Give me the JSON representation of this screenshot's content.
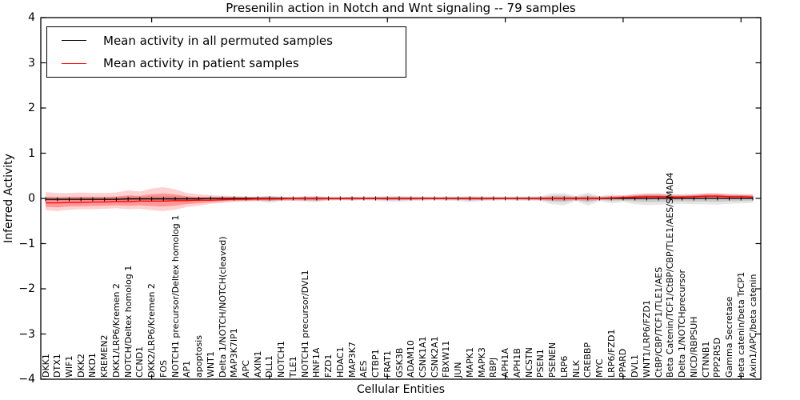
{
  "title": "Presenilin action in Notch and Wnt signaling -- 79 samples",
  "legend": {
    "items": [
      {
        "label": "Mean activity in all permuted samples",
        "color": "#000000"
      },
      {
        "label": "Mean activity in patient samples",
        "color": "#ff0000"
      }
    ]
  },
  "chart_data": {
    "type": "line",
    "title": "Presenilin action in Notch and Wnt signaling -- 79 samples",
    "xlabel": "Cellular Entities",
    "ylabel": "Inferred Activity",
    "ylim": [
      -4,
      4
    ],
    "yticks": [
      4,
      3,
      2,
      1,
      0,
      -1,
      -2,
      -3,
      -4
    ],
    "xticks_at": [
      9,
      19,
      29,
      39,
      49,
      59
    ],
    "grid": false,
    "legend_position": "upper left",
    "band_colors": {
      "permuted": "#808080",
      "patient": "#ff0000"
    },
    "categories": [
      "DKK1",
      "DTX1",
      "WIF1",
      "DKK2",
      "NKD1",
      "KREMEN2",
      "DKK1/LRP6/Kremen 2",
      "NOTCH/Deltex homolog 1",
      "CCND1",
      "DKK2/LRP6/Kremen 2",
      "FOS",
      "NOTCH1 precursor/Deltex homolog 1",
      "AP1",
      "apoptosis",
      "WNT1",
      "Delta 1/NOTCH/NOTCH(cleaved)",
      "MAP3K7IP1",
      "APC",
      "AXIN1",
      "DLL1",
      "NOTCH1",
      "TLE1",
      "NOTCH1 precursor/DVL1",
      "HNF1A",
      "FZD1",
      "HDAC1",
      "MAP3K7",
      "AES",
      "CTBP1",
      "FRAT1",
      "GSK3B",
      "ADAM10",
      "CSNK1A1",
      "CSNK2A1",
      "FBXW11",
      "JUN",
      "MAPK1",
      "MAPK3",
      "RBPJ",
      "APH1A",
      "APH1B",
      "NCSTN",
      "PSEN1",
      "PSENEN",
      "LRP6",
      "NLK",
      "CREBBP",
      "MYC",
      "LRP6/FZD1",
      "PPARD",
      "DVL1",
      "WNT1/LRP6/FZD1",
      "CtBP/CBP/TCF1/TLE1/AES",
      "Beta Catenin/TCF1/CtBP/CBP/TLE1/AES/SMAD4",
      "Delta 1/NOTCHprecursor",
      "NICD/RBPSUH",
      "CTNNB1",
      "PPP2R5D",
      "Gamma Secretase",
      "beta catenin/beta TrCP1",
      "Axin1/APC/beta catenin"
    ],
    "series": [
      {
        "name": "Mean activity in all permuted samples",
        "color": "#000000",
        "values": [
          -0.02,
          -0.02,
          -0.02,
          -0.02,
          -0.02,
          -0.02,
          -0.02,
          -0.01,
          -0.01,
          -0.01,
          -0.01,
          -0.01,
          -0.01,
          -0.01,
          0,
          0,
          0,
          0,
          0,
          0,
          0,
          0,
          0,
          0,
          0,
          0,
          0,
          0,
          0,
          0,
          0,
          0,
          0,
          0,
          0,
          0,
          0,
          0,
          0,
          0,
          0,
          0,
          0,
          0,
          0,
          0,
          0,
          0,
          0,
          0,
          0,
          0,
          0,
          0,
          0,
          0,
          0,
          0,
          0,
          0,
          0
        ],
        "band_lo": [
          -0.06,
          -0.06,
          -0.05,
          -0.05,
          -0.05,
          -0.05,
          -0.05,
          -0.06,
          -0.05,
          -0.06,
          -0.06,
          -0.06,
          -0.05,
          -0.05,
          -0.05,
          -0.05,
          -0.05,
          -0.05,
          -0.06,
          -0.1,
          -0.06,
          -0.05,
          -0.07,
          -0.08,
          -0.05,
          -0.04,
          -0.05,
          -0.04,
          -0.05,
          -0.07,
          -0.07,
          -0.06,
          -0.05,
          -0.04,
          -0.05,
          -0.06,
          -0.08,
          -0.06,
          -0.05,
          -0.04,
          -0.05,
          -0.06,
          -0.06,
          -0.13,
          -0.15,
          -0.06,
          -0.16,
          -0.06,
          -0.11,
          -0.08,
          -0.13,
          -0.15,
          -0.14,
          -0.13,
          -0.12,
          -0.13,
          -0.13,
          -0.14,
          -0.12,
          -0.11,
          -0.1
        ],
        "band_hi": [
          0.04,
          0.04,
          0.04,
          0.04,
          0.04,
          0.04,
          0.04,
          0.05,
          0.04,
          0.05,
          0.05,
          0.05,
          0.04,
          0.04,
          0.04,
          0.04,
          0.04,
          0.04,
          0.04,
          0.06,
          0.04,
          0.03,
          0.04,
          0.05,
          0.03,
          0.03,
          0.04,
          0.03,
          0.04,
          0.05,
          0.05,
          0.04,
          0.04,
          0.03,
          0.04,
          0.04,
          0.05,
          0.04,
          0.04,
          0.03,
          0.04,
          0.04,
          0.05,
          0.11,
          0.12,
          0.05,
          0.13,
          0.05,
          0.09,
          0.06,
          0.09,
          0.1,
          0.1,
          0.09,
          0.09,
          0.1,
          0.1,
          0.1,
          0.09,
          0.08,
          0.08
        ]
      },
      {
        "name": "Mean activity in patient samples",
        "color": "#ff0000",
        "values": [
          -0.1,
          -0.1,
          -0.09,
          -0.09,
          -0.08,
          -0.08,
          -0.07,
          -0.07,
          -0.06,
          -0.06,
          -0.06,
          -0.05,
          -0.05,
          -0.04,
          -0.04,
          -0.03,
          -0.02,
          -0.02,
          -0.01,
          -0.01,
          -0.01,
          0,
          0,
          0,
          0,
          0,
          0,
          0,
          0,
          0,
          0,
          0,
          0,
          0,
          0,
          0,
          0,
          0,
          0,
          0,
          0,
          0,
          0,
          0,
          0,
          0,
          0,
          0,
          0.01,
          0.02,
          0.03,
          0.04,
          0.04,
          0.03,
          0.03,
          0.04,
          0.05,
          0.05,
          0.04,
          0.04,
          0.03
        ],
        "band_lo": [
          -0.26,
          -0.28,
          -0.25,
          -0.24,
          -0.24,
          -0.23,
          -0.22,
          -0.24,
          -0.23,
          -0.26,
          -0.28,
          -0.25,
          -0.19,
          -0.16,
          -0.12,
          -0.1,
          -0.08,
          -0.07,
          -0.06,
          -0.06,
          -0.05,
          -0.05,
          -0.05,
          -0.06,
          -0.04,
          -0.04,
          -0.04,
          -0.03,
          -0.03,
          -0.04,
          -0.04,
          -0.04,
          -0.03,
          -0.03,
          -0.03,
          -0.03,
          -0.04,
          -0.04,
          -0.03,
          -0.03,
          -0.03,
          -0.03,
          -0.04,
          -0.05,
          -0.05,
          -0.04,
          -0.05,
          -0.04,
          -0.03,
          -0.03,
          -0.03,
          -0.03,
          -0.02,
          -0.03,
          -0.02,
          -0.02,
          -0.01,
          -0.01,
          -0.02,
          -0.01,
          -0.02
        ],
        "band_hi": [
          0.14,
          0.12,
          0.12,
          0.13,
          0.12,
          0.12,
          0.13,
          0.18,
          0.15,
          0.22,
          0.25,
          0.2,
          0.12,
          0.09,
          0.07,
          0.06,
          0.05,
          0.04,
          0.04,
          0.04,
          0.03,
          0.03,
          0.04,
          0.04,
          0.03,
          0.03,
          0.03,
          0.03,
          0.03,
          0.03,
          0.03,
          0.03,
          0.03,
          0.03,
          0.03,
          0.03,
          0.03,
          0.03,
          0.03,
          0.03,
          0.03,
          0.03,
          0.03,
          0.04,
          0.04,
          0.04,
          0.04,
          0.04,
          0.05,
          0.07,
          0.09,
          0.11,
          0.11,
          0.09,
          0.08,
          0.09,
          0.12,
          0.12,
          0.1,
          0.1,
          0.09
        ]
      }
    ]
  }
}
